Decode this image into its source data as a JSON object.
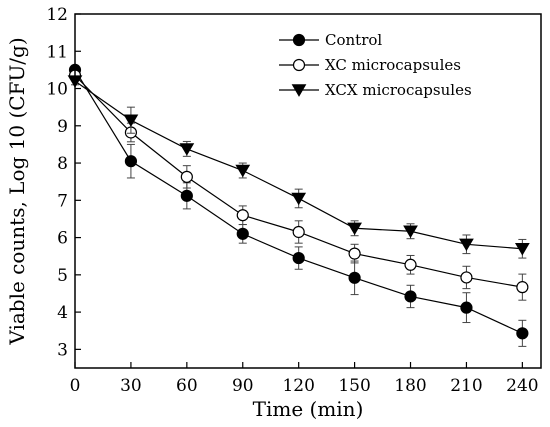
{
  "chart_data": {
    "type": "line",
    "x": [
      0,
      30,
      60,
      90,
      120,
      150,
      180,
      210,
      240
    ],
    "series": [
      {
        "name": "Control",
        "marker": "circle-filled",
        "values": [
          10.5,
          8.05,
          7.12,
          6.1,
          5.45,
          4.92,
          4.42,
          4.12,
          3.43
        ],
        "errors": [
          0.1,
          0.45,
          0.35,
          0.25,
          0.3,
          0.45,
          0.3,
          0.4,
          0.35
        ]
      },
      {
        "name": "XC microcapsules",
        "marker": "circle-open",
        "values": [
          10.35,
          8.82,
          7.63,
          6.6,
          6.15,
          5.57,
          5.27,
          4.93,
          4.67
        ],
        "errors": [
          0.1,
          0.25,
          0.3,
          0.25,
          0.3,
          0.25,
          0.25,
          0.3,
          0.35
        ]
      },
      {
        "name": "XCX microcapsules",
        "marker": "triangle-down-filled",
        "values": [
          10.2,
          9.15,
          8.38,
          7.8,
          7.05,
          6.25,
          6.17,
          5.82,
          5.7
        ],
        "errors": [
          0.1,
          0.35,
          0.2,
          0.2,
          0.25,
          0.2,
          0.2,
          0.25,
          0.25
        ]
      }
    ],
    "xlabel": "Time (min)",
    "ylabel": "Viable counts, Log 10 (CFU/g)",
    "xlim": [
      0,
      250
    ],
    "ylim": [
      2.5,
      12
    ],
    "xticks": [
      0,
      30,
      60,
      90,
      120,
      150,
      180,
      210,
      240
    ],
    "yticks": [
      3,
      4,
      5,
      6,
      7,
      8,
      9,
      10,
      11,
      12
    ],
    "grid": false,
    "legend_position": "top-right",
    "colors": {
      "line": "#000000",
      "marker_fill": "#000000",
      "open_fill": "#ffffff"
    }
  }
}
